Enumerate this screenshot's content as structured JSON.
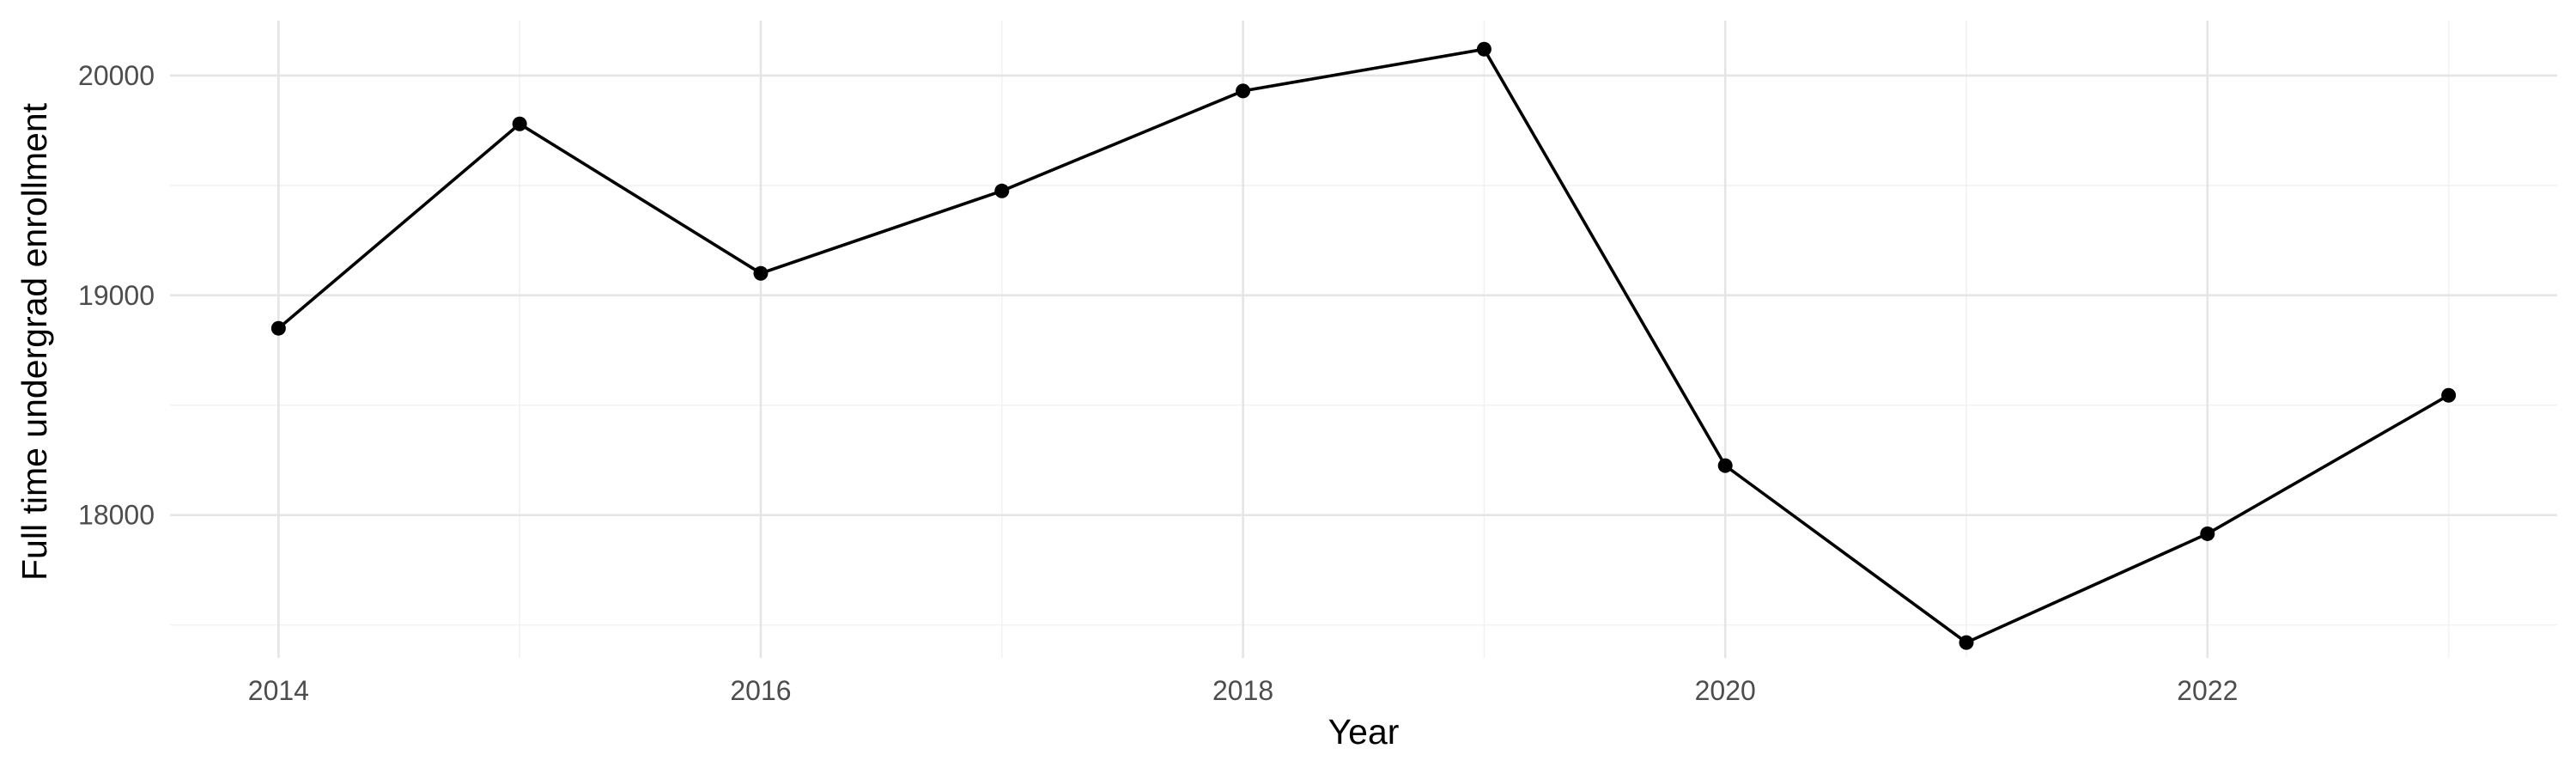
{
  "chart_data": {
    "type": "line",
    "title": "",
    "xlabel": "Year",
    "ylabel": "Full time undergrad enrollment",
    "x": [
      2014,
      2015,
      2016,
      2017,
      2018,
      2019,
      2020,
      2021,
      2022,
      2023
    ],
    "series": [
      {
        "values": [
          18850,
          19780,
          19100,
          19475,
          19930,
          20120,
          18225,
          17420,
          17915,
          18545
        ]
      }
    ],
    "xlim": [
      2013.55,
      2023.45
    ],
    "ylim": [
      17350,
      20250
    ],
    "x_ticks": [
      2014,
      2016,
      2018,
      2020,
      2022
    ],
    "y_ticks": [
      18000,
      19000,
      20000
    ],
    "x_tick_labels": [
      "2014",
      "2016",
      "2018",
      "2020",
      "2022"
    ],
    "y_tick_labels": [
      "18000",
      "19000",
      "20000"
    ],
    "grid": true,
    "legend": "none",
    "colors": {
      "line": "#000000",
      "point": "#000000",
      "grid": "#ebebeb"
    }
  }
}
